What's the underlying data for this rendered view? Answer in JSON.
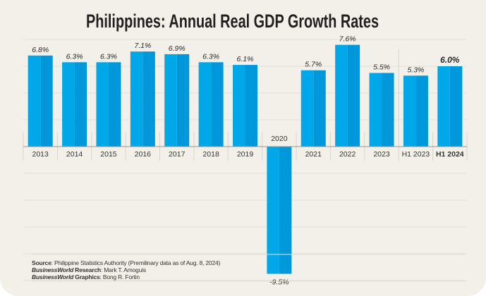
{
  "chart_data": {
    "type": "bar",
    "title": "Philippines: Annual Real GDP Growth Rates",
    "categories": [
      "2013",
      "2014",
      "2015",
      "2016",
      "2017",
      "2018",
      "2019",
      "2020",
      "2021",
      "2022",
      "2023",
      "H1 2023",
      "H1 2024"
    ],
    "values": [
      6.8,
      6.3,
      6.3,
      7.1,
      6.9,
      6.3,
      6.1,
      -9.5,
      5.7,
      7.6,
      5.5,
      5.3,
      6.0
    ],
    "data_labels": [
      "6.8%",
      "6.3%",
      "6.3%",
      "7.1%",
      "6.9%",
      "6.3%",
      "6.1%",
      "-9.5%",
      "5.7%",
      "7.6%",
      "5.5%",
      "5.3%",
      "6.0%"
    ],
    "highlighted_category": "H1 2024",
    "unit": "%",
    "ylim": [
      -10,
      8
    ],
    "grid": true,
    "colors": {
      "bar": "#00a8ea",
      "bar_shade": "#0098da",
      "background": "#f3f0ea",
      "grid": "#e4e0d8"
    }
  },
  "credits": {
    "source_label": "Source",
    "source_text": ": Philippine Statistics Authority (Premilinary data as of Aug. 8, 2024)",
    "research_brand": "BusinessWorld",
    "research_label": " Research",
    "research_text": ": Mark T. Amoguis",
    "graphics_brand": "BusinessWorld",
    "graphics_label": " Graphics",
    "graphics_text": ": Bong R. Fortin"
  }
}
